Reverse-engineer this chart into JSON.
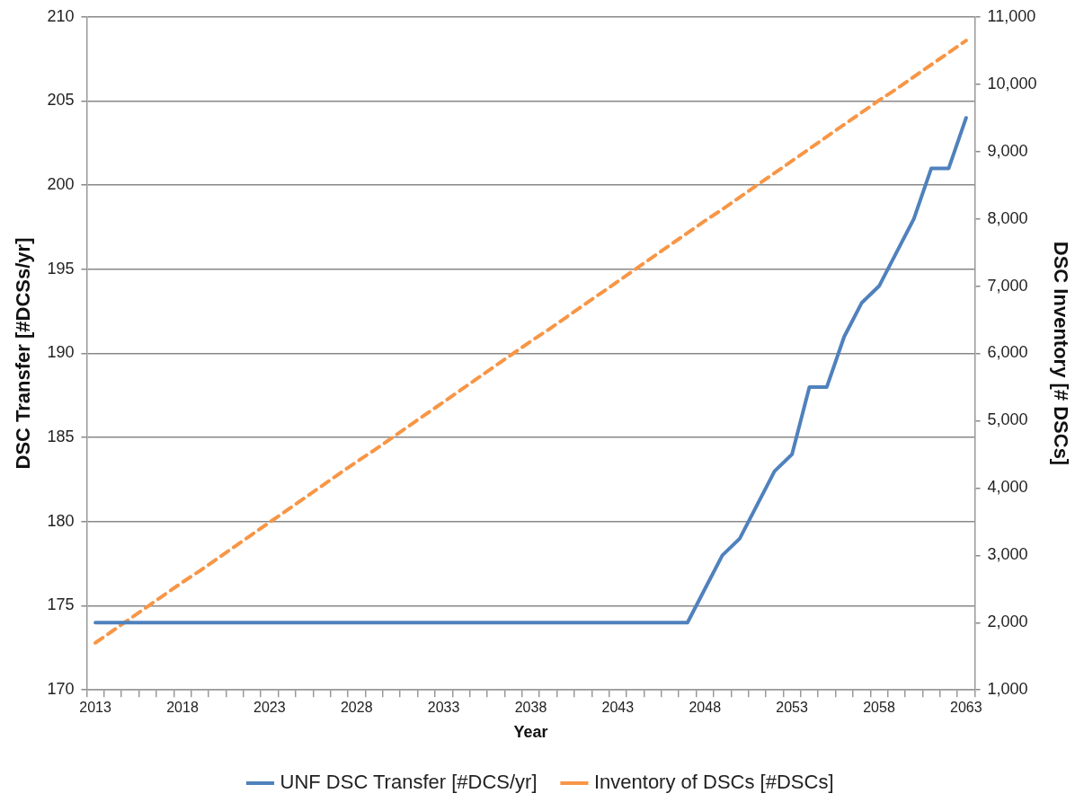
{
  "chart_data": {
    "type": "line",
    "xlabel": "Year",
    "ylabel": "DSC Transfer [#DCSs/yr]",
    "y2label": "DSC Inventory [# DSCs]",
    "categories": [
      "2013",
      null,
      null,
      null,
      null,
      "2018",
      null,
      null,
      null,
      null,
      "2023",
      null,
      null,
      null,
      null,
      "2028",
      null,
      null,
      null,
      null,
      "2033",
      null,
      null,
      null,
      null,
      "2038",
      null,
      null,
      null,
      null,
      "2043",
      null,
      null,
      null,
      null,
      "2048",
      null,
      null,
      null,
      null,
      "2053",
      null,
      null,
      null,
      null,
      "2058",
      null,
      null,
      null,
      null,
      "2063"
    ],
    "series": [
      {
        "name": "UNF DSC Transfer [#DCS/yr]",
        "color": "#4f81bd",
        "line_style": "solid",
        "values": [
          174,
          174,
          174,
          174,
          174,
          174,
          174,
          174,
          174,
          174,
          174,
          174,
          174,
          174,
          174,
          174,
          174,
          174,
          174,
          174,
          174,
          174,
          174,
          174,
          174,
          174,
          174,
          174,
          174,
          174,
          174,
          174,
          174,
          174,
          174,
          176,
          178,
          179,
          181,
          183,
          184,
          188,
          188,
          191,
          193,
          194,
          196,
          198,
          201,
          201,
          204
        ]
      },
      {
        "name": "Inventory of DSCs [#DSCs]",
        "color": "#f79646",
        "axis": "y2",
        "line_style": "dashed",
        "values": [
          1700,
          1880,
          2060,
          2240,
          2420,
          2600,
          2770,
          2950,
          3130,
          3310,
          3490,
          3670,
          3850,
          4030,
          4210,
          4390,
          4560,
          4740,
          4920,
          5100,
          5280,
          5460,
          5640,
          5820,
          6000,
          6180,
          6350,
          6530,
          6710,
          6890,
          7070,
          7250,
          7430,
          7610,
          7790,
          7970,
          8140,
          8320,
          8500,
          8680,
          8860,
          9040,
          9220,
          9400,
          9580,
          9760,
          9930,
          10110,
          10290,
          10470,
          10650
        ]
      }
    ],
    "ylim": [
      170,
      210
    ],
    "yticks": [
      170,
      175,
      180,
      185,
      190,
      195,
      200,
      205,
      210
    ],
    "y2lim": [
      1000,
      11000
    ],
    "y2ticks": [
      {
        "value": 1000,
        "label": "1,000"
      },
      {
        "value": 2000,
        "label": "2,000"
      },
      {
        "value": 3000,
        "label": "3,000"
      },
      {
        "value": 4000,
        "label": "4,000"
      },
      {
        "value": 5000,
        "label": "5,000"
      },
      {
        "value": 6000,
        "label": "6,000"
      },
      {
        "value": 7000,
        "label": "7,000"
      },
      {
        "value": 8000,
        "label": "8,000"
      },
      {
        "value": 9000,
        "label": "9,000"
      },
      {
        "value": 10000,
        "label": "10,000"
      },
      {
        "value": 11000,
        "label": "11,000"
      }
    ],
    "grid": "y",
    "legend": "bottom"
  }
}
